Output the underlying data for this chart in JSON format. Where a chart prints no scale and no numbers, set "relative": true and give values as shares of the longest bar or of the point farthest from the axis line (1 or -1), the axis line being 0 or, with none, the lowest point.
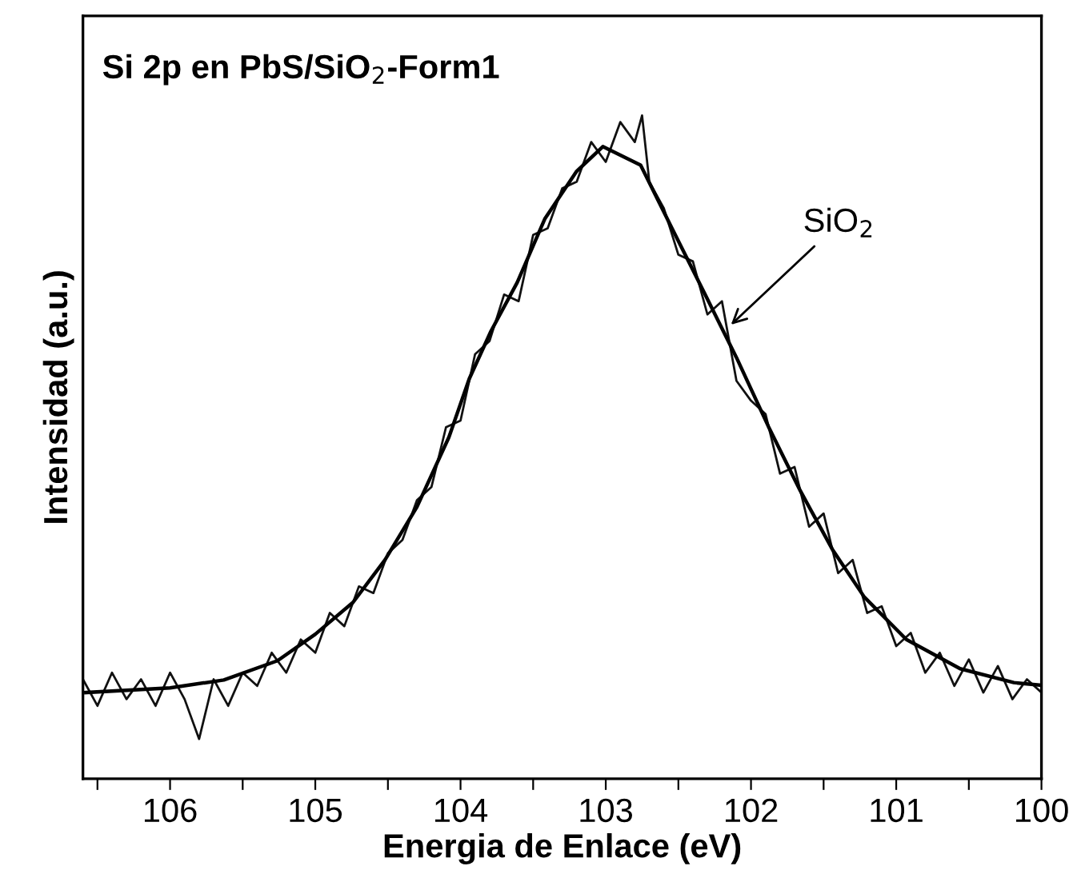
{
  "chart_data": {
    "type": "line",
    "title": "Si 2p en PbS/SiO$_{2}$-Form1",
    "xlabel": "Energia de Enlace (eV)",
    "ylabel": "Intensidad (a.u.)",
    "relative": true,
    "tick_labels": "x",
    "xlim": [
      106.6,
      100
    ],
    "xticks": [
      {
        "value": 106.5,
        "label": null
      },
      106,
      {
        "value": 105.5,
        "label": null
      },
      105,
      {
        "value": 104.5,
        "label": null
      },
      104,
      {
        "value": 103.5,
        "label": null
      },
      103,
      {
        "value": 102.5,
        "label": null
      },
      102,
      {
        "value": 101.5,
        "label": null
      },
      101,
      {
        "value": 100.5,
        "label": null
      },
      100
    ],
    "annotations": [
      {
        "text": "SiO$_{2}$",
        "x": 102.16,
        "y": 0.68
      }
    ],
    "series": [
      {
        "color": "#111111",
        "x": [
          106.6,
          106.5,
          106.4,
          106.3,
          106.2,
          106.1,
          106.0,
          105.9,
          105.8,
          105.7,
          105.6,
          105.5,
          105.4,
          105.3,
          105.2,
          105.1,
          105.0,
          104.9,
          104.8,
          104.7,
          104.6,
          104.5,
          104.4,
          104.3,
          104.2,
          104.1,
          104.0,
          103.9,
          103.8,
          103.7,
          103.6,
          103.5,
          103.4,
          103.3,
          103.2,
          103.1,
          103.0,
          102.9,
          102.8,
          102.75,
          102.7,
          102.6,
          102.5,
          102.4,
          102.3,
          102.2,
          102.1,
          102.0,
          101.9,
          101.8,
          101.7,
          101.6,
          101.5,
          101.4,
          101.3,
          101.2,
          101.1,
          101.0,
          100.9,
          100.8,
          100.7,
          100.6,
          100.5,
          100.4,
          100.3,
          100.2,
          100.1,
          100.0
        ],
        "values": [
          0.15,
          0.11,
          0.16,
          0.12,
          0.15,
          0.11,
          0.16,
          0.12,
          0.06,
          0.15,
          0.11,
          0.16,
          0.14,
          0.19,
          0.16,
          0.21,
          0.19,
          0.25,
          0.23,
          0.29,
          0.28,
          0.34,
          0.36,
          0.42,
          0.44,
          0.53,
          0.54,
          0.64,
          0.66,
          0.73,
          0.72,
          0.82,
          0.83,
          0.89,
          0.9,
          0.96,
          0.93,
          0.99,
          0.96,
          1.0,
          0.9,
          0.86,
          0.79,
          0.78,
          0.7,
          0.72,
          0.6,
          0.57,
          0.55,
          0.46,
          0.47,
          0.38,
          0.4,
          0.31,
          0.33,
          0.25,
          0.26,
          0.2,
          0.22,
          0.16,
          0.19,
          0.14,
          0.18,
          0.13,
          0.17,
          0.12,
          0.15,
          0.13
        ]
      },
      {
        "color": "#000000",
        "x": [
          106.58,
          106.0,
          105.63,
          105.26,
          105.0,
          104.74,
          104.52,
          104.3,
          104.08,
          103.94,
          103.79,
          103.61,
          103.42,
          103.2,
          103.02,
          102.76,
          102.54,
          102.32,
          102.1,
          101.88,
          101.66,
          101.44,
          101.22,
          100.93,
          100.56,
          100.19,
          100.0
        ],
        "values": [
          0.13,
          0.137,
          0.149,
          0.178,
          0.218,
          0.266,
          0.33,
          0.41,
          0.515,
          0.603,
          0.675,
          0.748,
          0.844,
          0.916,
          0.953,
          0.925,
          0.828,
          0.732,
          0.635,
          0.531,
          0.434,
          0.346,
          0.274,
          0.21,
          0.166,
          0.145,
          0.141
        ]
      }
    ]
  }
}
